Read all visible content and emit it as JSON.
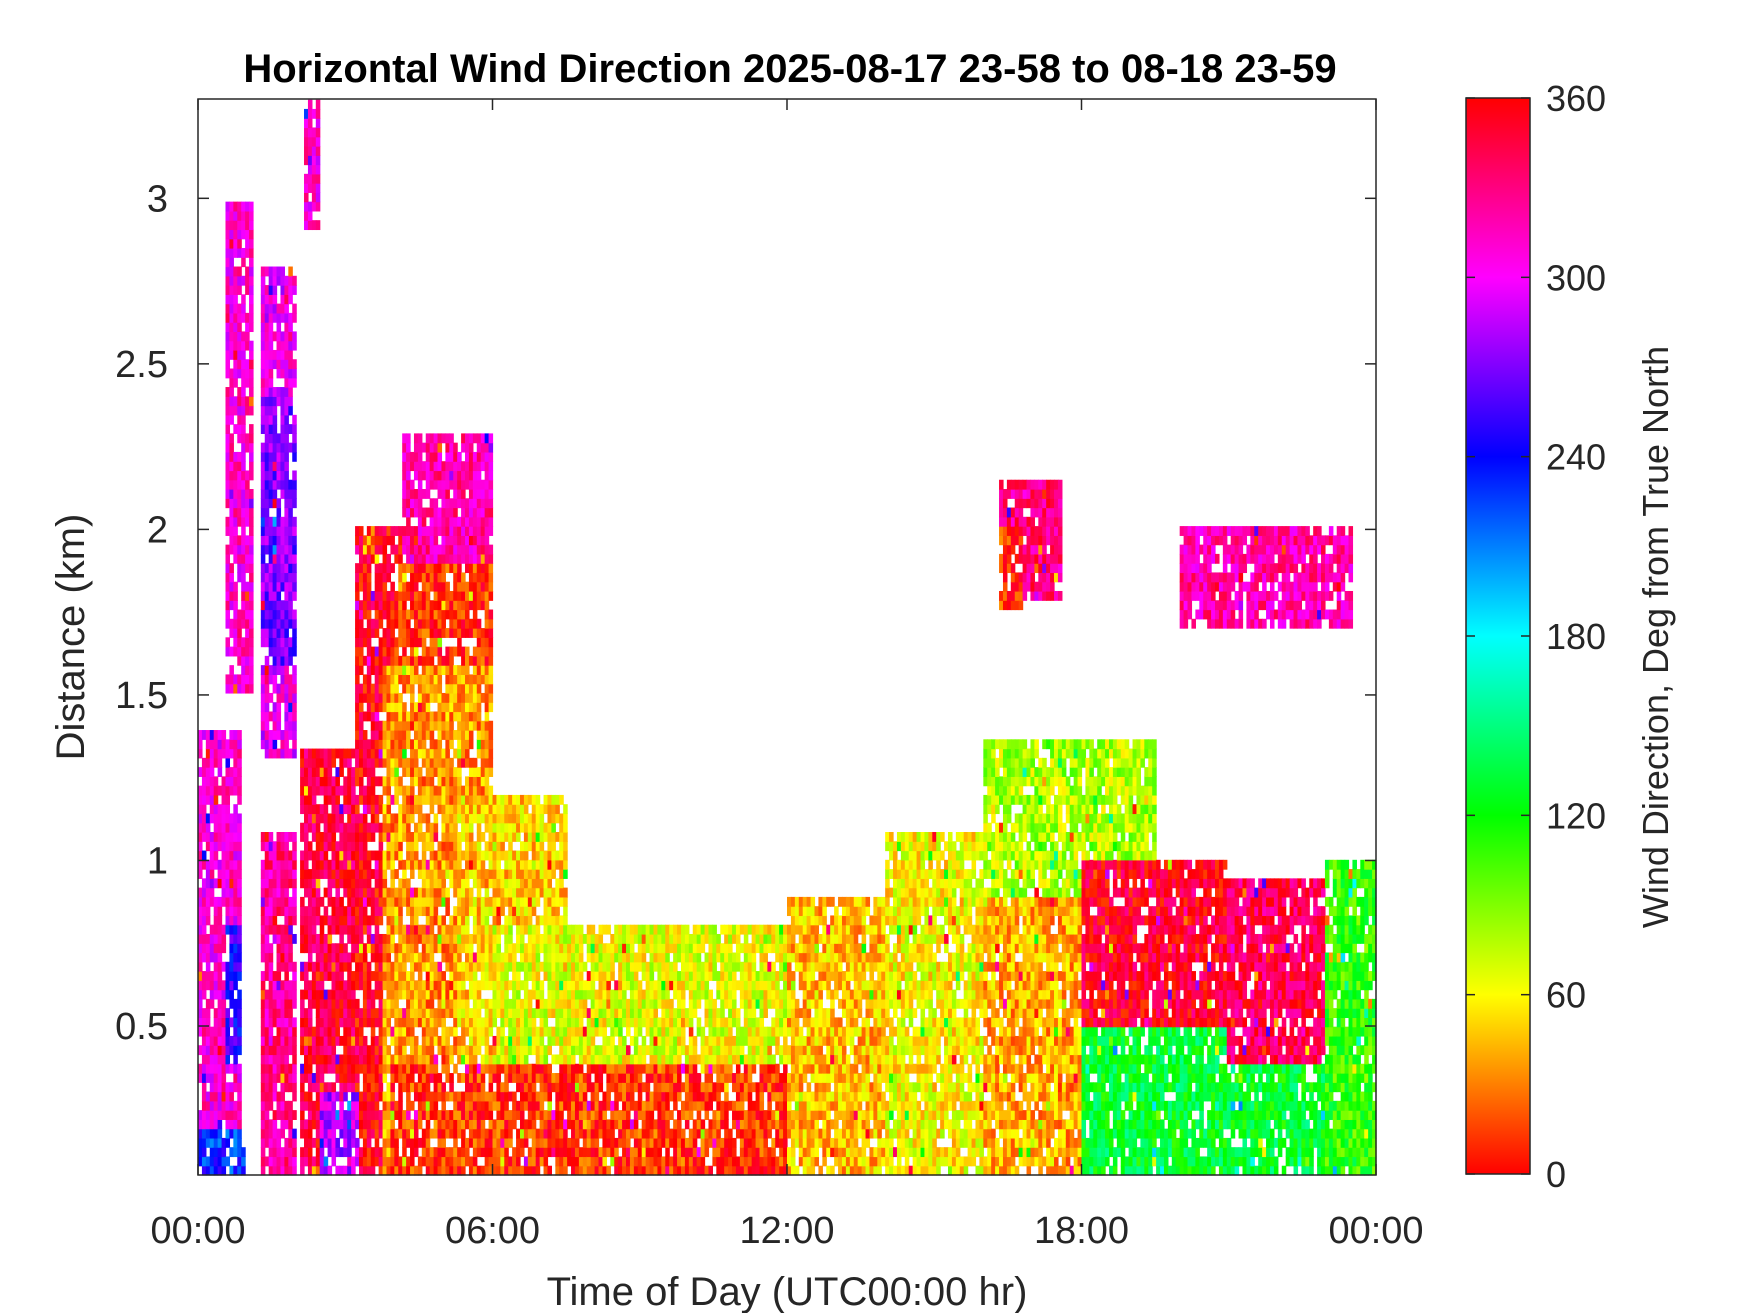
{
  "chart_data": {
    "type": "heatmap",
    "title": "Horizontal Wind Direction 2025-08-17 23-58 to 08-18 23-59",
    "xlabel": "Time of Day (UTC00:00 hr)",
    "ylabel": "Distance (km)",
    "xlim": [
      0,
      24
    ],
    "ylim": [
      0.05,
      3.3
    ],
    "x_ticks": [
      {
        "value": 0,
        "label": "00:00"
      },
      {
        "value": 6,
        "label": "06:00"
      },
      {
        "value": 12,
        "label": "12:00"
      },
      {
        "value": 18,
        "label": "18:00"
      },
      {
        "value": 24,
        "label": "00:00"
      }
    ],
    "y_ticks": [
      {
        "value": 0.5,
        "label": "0.5"
      },
      {
        "value": 1,
        "label": "1"
      },
      {
        "value": 1.5,
        "label": "1.5"
      },
      {
        "value": 2,
        "label": "2"
      },
      {
        "value": 2.5,
        "label": "2.5"
      },
      {
        "value": 3,
        "label": "3"
      }
    ],
    "colorbar": {
      "label": "Wind Direction, Deg from True North",
      "range": [
        0,
        360
      ],
      "ticks": [
        0,
        60,
        120,
        180,
        240,
        300,
        360
      ],
      "colormap": [
        "#ff0000",
        "#ffff00",
        "#00ff00",
        "#00ffff",
        "#0000ff",
        "#ff00ff",
        "#ff0000"
      ]
    },
    "regions": [
      {
        "t0": 0.0,
        "t1": 0.9,
        "z0": 0.05,
        "z1": 1.4,
        "deg": 310
      },
      {
        "t0": 0.0,
        "t1": 1.0,
        "z0": 0.05,
        "z1": 0.2,
        "deg": 230
      },
      {
        "t0": 0.6,
        "t1": 0.9,
        "z0": 0.4,
        "z1": 0.8,
        "deg": 250
      },
      {
        "t0": 0.6,
        "t1": 1.1,
        "z0": 1.5,
        "z1": 3.0,
        "deg": 310
      },
      {
        "t0": 1.3,
        "t1": 2.0,
        "z0": 1.3,
        "z1": 2.8,
        "deg": 300
      },
      {
        "t0": 1.3,
        "t1": 2.0,
        "z0": 1.6,
        "z1": 2.4,
        "deg": 270
      },
      {
        "t0": 1.3,
        "t1": 2.0,
        "z0": 0.05,
        "z1": 1.1,
        "deg": 325
      },
      {
        "t0": 2.2,
        "t1": 2.5,
        "z0": 2.9,
        "z1": 3.3,
        "deg": 310
      },
      {
        "t0": 2.1,
        "t1": 3.2,
        "z0": 0.05,
        "z1": 1.35,
        "deg": 345
      },
      {
        "t0": 3.2,
        "t1": 4.3,
        "z0": 0.05,
        "z1": 2.0,
        "deg": 355
      },
      {
        "t0": 2.5,
        "t1": 3.3,
        "z0": 0.05,
        "z1": 0.3,
        "deg": 285
      },
      {
        "t0": 4.2,
        "t1": 6.0,
        "z0": 1.8,
        "z1": 2.28,
        "deg": 320
      },
      {
        "t0": 4.0,
        "t1": 6.0,
        "z0": 1.4,
        "z1": 1.9,
        "deg": 10
      },
      {
        "t0": 3.8,
        "t1": 6.0,
        "z0": 0.05,
        "z1": 1.6,
        "deg": 35
      },
      {
        "t0": 5.3,
        "t1": 7.5,
        "z0": 0.05,
        "z1": 1.2,
        "deg": 50
      },
      {
        "t0": 6.0,
        "t1": 12.0,
        "z0": 0.3,
        "z1": 0.8,
        "deg": 65
      },
      {
        "t0": 3.9,
        "t1": 12.0,
        "z0": 0.05,
        "z1": 0.4,
        "deg": 12
      },
      {
        "t0": 12.0,
        "t1": 14.0,
        "z0": 0.05,
        "z1": 0.9,
        "deg": 45
      },
      {
        "t0": 14.0,
        "t1": 16.0,
        "z0": 0.05,
        "z1": 1.1,
        "deg": 60
      },
      {
        "t0": 16.0,
        "t1": 19.5,
        "z0": 0.9,
        "z1": 1.38,
        "deg": 80
      },
      {
        "t0": 16.0,
        "t1": 18.0,
        "z0": 0.05,
        "z1": 0.9,
        "deg": 40
      },
      {
        "t0": 18.0,
        "t1": 21.0,
        "z0": 0.3,
        "z1": 1.0,
        "deg": 350
      },
      {
        "t0": 18.0,
        "t1": 24.0,
        "z0": 0.05,
        "z1": 0.5,
        "deg": 130
      },
      {
        "t0": 21.0,
        "t1": 24.0,
        "z0": 0.4,
        "z1": 0.95,
        "deg": 340
      },
      {
        "t0": 23.0,
        "t1": 24.0,
        "z0": 0.05,
        "z1": 1.0,
        "deg": 110
      },
      {
        "t0": 16.3,
        "t1": 17.6,
        "z0": 1.8,
        "z1": 2.15,
        "deg": 330
      },
      {
        "t0": 16.3,
        "t1": 16.8,
        "z0": 1.75,
        "z1": 2.0,
        "deg": 10
      },
      {
        "t0": 20.0,
        "t1": 23.5,
        "z0": 1.7,
        "z1": 2.0,
        "deg": 320
      }
    ]
  }
}
